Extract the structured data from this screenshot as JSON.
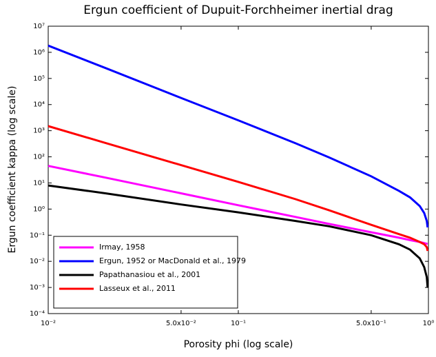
{
  "chart_data": {
    "type": "line",
    "title": "Ergun coefficient of Dupuit-Forchheimer inertial drag",
    "x_label": "Porosity phi (log scale)",
    "y_label": "Ergun coefficient kappa (log scale)",
    "xscale": "log",
    "yscale": "log",
    "x": [
      0.01,
      0.02,
      0.05,
      0.1,
      0.2,
      0.3,
      0.5,
      0.7,
      0.8,
      0.9,
      0.95,
      0.98,
      0.99
    ],
    "series": [
      {
        "name": "Irmay, 1958",
        "color": "#ff00ff",
        "values": [
          45,
          16,
          4,
          1.4,
          0.5,
          0.27,
          0.13,
          0.08,
          0.065,
          0.055,
          0.05,
          0.047,
          0.046
        ]
      },
      {
        "name": "Ergun, 1952 or MacDonald et al., 1979",
        "color": "#0000ff",
        "values": [
          1800000,
          250000,
          18000,
          2500,
          330,
          95,
          18,
          5,
          2.8,
          1.3,
          0.7,
          0.35,
          0.2
        ]
      },
      {
        "name": "Papathanasiou et al., 2001",
        "color": "#000000",
        "values": [
          8,
          4,
          1.5,
          0.75,
          0.35,
          0.22,
          0.1,
          0.045,
          0.028,
          0.013,
          0.006,
          0.0025,
          0.001
        ]
      },
      {
        "name": "Lasseux et al., 2011",
        "color": "#ff0000",
        "values": [
          1500,
          340,
          48,
          11,
          2.4,
          0.9,
          0.25,
          0.11,
          0.08,
          0.055,
          0.045,
          0.035,
          0.025
        ]
      }
    ],
    "xlim": [
      0.01,
      1
    ],
    "ylim": [
      0.0001,
      10000000
    ],
    "xticks": [
      {
        "value": 0.01,
        "label": "10⁻²"
      },
      {
        "value": 0.05,
        "label": "5.0x10⁻²"
      },
      {
        "value": 0.1,
        "label": "10⁻¹"
      },
      {
        "value": 0.5,
        "label": "5.0x10⁻¹"
      },
      {
        "value": 1,
        "label": "10⁰"
      }
    ],
    "yticks": [
      {
        "value": 0.0001,
        "label": "10⁻⁴"
      },
      {
        "value": 0.001,
        "label": "10⁻³"
      },
      {
        "value": 0.01,
        "label": "10⁻²"
      },
      {
        "value": 0.1,
        "label": "10⁻¹"
      },
      {
        "value": 1,
        "label": "10⁰"
      },
      {
        "value": 10,
        "label": "10¹"
      },
      {
        "value": 100,
        "label": "10²"
      },
      {
        "value": 1000,
        "label": "10³"
      },
      {
        "value": 10000,
        "label": "10⁴"
      },
      {
        "value": 100000,
        "label": "10⁵"
      },
      {
        "value": 1000000,
        "label": "10⁶"
      },
      {
        "value": 10000000,
        "label": "10⁷"
      }
    ],
    "legend": "lower left"
  }
}
